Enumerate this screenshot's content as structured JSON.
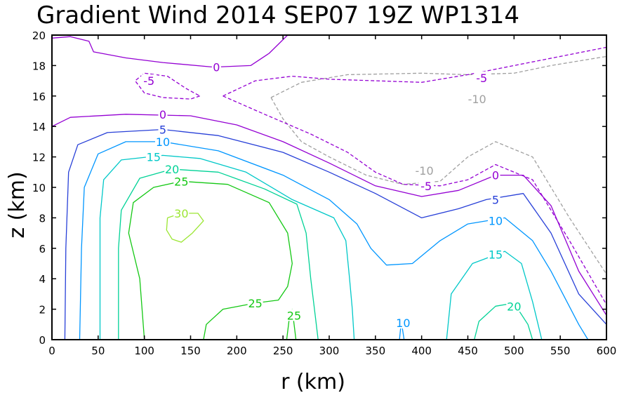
{
  "chart_data": {
    "type": "contour",
    "title": "Gradient Wind 2014 SEP07 19Z  WP1314",
    "xlabel": "r (km)",
    "ylabel": "z (km)",
    "xlim": [
      0,
      600
    ],
    "ylim": [
      0,
      20
    ],
    "xticks": [
      "0",
      "50",
      "100",
      "150",
      "200",
      "250",
      "300",
      "350",
      "400",
      "450",
      "500",
      "550",
      "600"
    ],
    "yticks": [
      "0",
      "2",
      "4",
      "6",
      "8",
      "10",
      "12",
      "14",
      "16",
      "18",
      "20"
    ],
    "levels": [
      {
        "value": -10,
        "label": "-10",
        "color": "#a0a0a0",
        "dashed": true,
        "lines": [
          [
            [
              237,
              15.9
            ],
            [
              270,
              16.9
            ],
            [
              320,
              17.4
            ],
            [
              400,
              17.5
            ],
            [
              450,
              17.4
            ],
            [
              500,
              17.5
            ],
            [
              540,
              18.0
            ],
            [
              600,
              18.6
            ]
          ],
          [
            [
              237,
              15.9
            ],
            [
              250,
              14.5
            ],
            [
              270,
              13.0
            ],
            [
              300,
              12.0
            ],
            [
              340,
              10.8
            ],
            [
              380,
              10.2
            ],
            [
              420,
              10.4
            ],
            [
              450,
              12.0
            ],
            [
              480,
              13.0
            ],
            [
              520,
              12.0
            ],
            [
              560,
              8.0
            ],
            [
              600,
              4.3
            ]
          ]
        ],
        "labels": [
          {
            "text": "-10",
            "x": 460,
            "y": 15.8
          },
          {
            "text": "-10",
            "x": 403,
            "y": 11.1
          }
        ]
      },
      {
        "value": -5,
        "label": "-5",
        "color": "#9400d3",
        "dashed": true,
        "lines": [
          [
            [
              160,
              16.0
            ],
            [
              150,
              15.8
            ],
            [
              120,
              15.9
            ],
            [
              100,
              16.2
            ],
            [
              90,
              17.0
            ],
            [
              100,
              17.5
            ],
            [
              125,
              17.3
            ],
            [
              145,
              16.5
            ],
            [
              160,
              16.0
            ]
          ],
          [
            [
              185,
              16.0
            ],
            [
              220,
              17.0
            ],
            [
              260,
              17.3
            ],
            [
              300,
              17.1
            ],
            [
              350,
              17.0
            ],
            [
              400,
              16.9
            ],
            [
              450,
              17.4
            ],
            [
              500,
              18.0
            ],
            [
              600,
              19.2
            ]
          ],
          [
            [
              185,
              16.0
            ],
            [
              230,
              14.8
            ],
            [
              280,
              13.5
            ],
            [
              320,
              12.3
            ],
            [
              350,
              11.0
            ],
            [
              380,
              10.2
            ],
            [
              420,
              10.1
            ],
            [
              450,
              10.5
            ],
            [
              480,
              11.5
            ],
            [
              520,
              10.5
            ],
            [
              560,
              6.5
            ],
            [
              600,
              2.3
            ]
          ]
        ],
        "labels": [
          {
            "text": "-5",
            "x": 105,
            "y": 17.0
          },
          {
            "text": "-5",
            "x": 465,
            "y": 17.2
          },
          {
            "text": "-5",
            "x": 405,
            "y": 10.1
          }
        ]
      },
      {
        "value": 0,
        "label": "0",
        "color": "#9400d3",
        "dashed": false,
        "lines": [
          [
            [
              0,
              19.8
            ],
            [
              20,
              19.9
            ],
            [
              40,
              19.6
            ],
            [
              45,
              18.9
            ],
            [
              80,
              18.5
            ],
            [
              120,
              18.2
            ],
            [
              175,
              17.9
            ],
            [
              215,
              18.0
            ],
            [
              235,
              18.8
            ],
            [
              255,
              20.0
            ]
          ],
          [
            [
              0,
              14.0
            ],
            [
              20,
              14.6
            ],
            [
              80,
              14.8
            ],
            [
              150,
              14.7
            ],
            [
              200,
              14.1
            ],
            [
              250,
              13.0
            ],
            [
              300,
              11.6
            ],
            [
              350,
              10.1
            ],
            [
              400,
              9.4
            ],
            [
              440,
              9.8
            ],
            [
              480,
              10.8
            ],
            [
              510,
              10.8
            ],
            [
              540,
              8.8
            ],
            [
              570,
              4.5
            ],
            [
              600,
              1.6
            ]
          ]
        ],
        "labels": [
          {
            "text": "0",
            "x": 178,
            "y": 17.9
          },
          {
            "text": "0",
            "x": 120,
            "y": 14.8
          },
          {
            "text": "0",
            "x": 480,
            "y": 10.8
          }
        ]
      },
      {
        "value": 5,
        "label": "5",
        "color": "#2840d8",
        "dashed": false,
        "lines": [
          [
            [
              14,
              0.0
            ],
            [
              15,
              6.0
            ],
            [
              18,
              11.0
            ],
            [
              28,
              12.8
            ],
            [
              60,
              13.6
            ],
            [
              120,
              13.8
            ],
            [
              180,
              13.4
            ],
            [
              250,
              12.3
            ],
            [
              300,
              11.0
            ],
            [
              350,
              9.6
            ],
            [
              400,
              8.0
            ],
            [
              440,
              8.6
            ],
            [
              470,
              9.2
            ],
            [
              510,
              9.6
            ],
            [
              540,
              7.0
            ],
            [
              570,
              3.0
            ],
            [
              600,
              1.0
            ]
          ]
        ],
        "labels": [
          {
            "text": "5",
            "x": 120,
            "y": 13.8
          },
          {
            "text": "5",
            "x": 480,
            "y": 9.2
          }
        ]
      },
      {
        "value": 10,
        "label": "10",
        "color": "#0096ff",
        "dashed": false,
        "lines": [
          [
            [
              30,
              0.0
            ],
            [
              32,
              6.0
            ],
            [
              35,
              10.0
            ],
            [
              50,
              12.2
            ],
            [
              80,
              13.0
            ],
            [
              120,
              13.0
            ],
            [
              180,
              12.4
            ],
            [
              250,
              10.8
            ],
            [
              300,
              9.2
            ],
            [
              330,
              7.6
            ],
            [
              345,
              6.0
            ],
            [
              362,
              4.9
            ],
            [
              390,
              5.0
            ],
            [
              420,
              6.5
            ],
            [
              450,
              7.6
            ],
            [
              490,
              8.0
            ],
            [
              520,
              6.5
            ],
            [
              540,
              4.5
            ],
            [
              570,
              1.0
            ],
            [
              580,
              0.0
            ]
          ],
          [
            [
              376,
              0.0
            ],
            [
              378,
              1.2
            ],
            [
              381,
              0.0
            ]
          ]
        ],
        "labels": [
          {
            "text": "10",
            "x": 120,
            "y": 13.0
          },
          {
            "text": "10",
            "x": 480,
            "y": 7.8
          },
          {
            "text": "10",
            "x": 380,
            "y": 1.1
          }
        ]
      },
      {
        "value": 15,
        "label": "15",
        "color": "#00c8c8",
        "dashed": false,
        "lines": [
          [
            [
              52,
              0.0
            ],
            [
              52,
              8.0
            ],
            [
              56,
              10.5
            ],
            [
              75,
              11.8
            ],
            [
              120,
              12.1
            ],
            [
              160,
              11.9
            ],
            [
              210,
              11.0
            ],
            [
              260,
              9.2
            ],
            [
              305,
              8.0
            ],
            [
              318,
              6.5
            ],
            [
              322,
              4.0
            ],
            [
              325,
              2.0
            ],
            [
              327,
              0.0
            ]
          ],
          [
            [
              427,
              0.0
            ],
            [
              432,
              3.0
            ],
            [
              455,
              5.0
            ],
            [
              490,
              5.8
            ],
            [
              508,
              5.0
            ],
            [
              520,
              2.5
            ],
            [
              530,
              0.0
            ]
          ]
        ],
        "labels": [
          {
            "text": "15",
            "x": 110,
            "y": 12.0
          },
          {
            "text": "15",
            "x": 480,
            "y": 5.6
          }
        ]
      },
      {
        "value": 20,
        "label": "20",
        "color": "#00d296",
        "dashed": false,
        "lines": [
          [
            [
              72,
              0.0
            ],
            [
              72,
              6.0
            ],
            [
              75,
              8.5
            ],
            [
              95,
              10.6
            ],
            [
              130,
              11.2
            ],
            [
              180,
              11.0
            ],
            [
              230,
              9.9
            ],
            [
              265,
              8.9
            ],
            [
              275,
              7.0
            ],
            [
              280,
              4.0
            ],
            [
              285,
              1.5
            ],
            [
              288,
              0.0
            ]
          ],
          [
            [
              457,
              0.0
            ],
            [
              462,
              1.2
            ],
            [
              480,
              2.2
            ],
            [
              500,
              2.4
            ],
            [
              515,
              1.0
            ],
            [
              520,
              0.0
            ]
          ]
        ],
        "labels": [
          {
            "text": "20",
            "x": 130,
            "y": 11.2
          },
          {
            "text": "20",
            "x": 500,
            "y": 2.2
          }
        ]
      },
      {
        "value": 25,
        "label": "25",
        "color": "#14c814",
        "dashed": false,
        "lines": [
          [
            [
              100,
              0.0
            ],
            [
              95,
              4.0
            ],
            [
              83,
              7.0
            ],
            [
              88,
              9.0
            ],
            [
              110,
              10.0
            ],
            [
              140,
              10.4
            ],
            [
              190,
              10.2
            ],
            [
              235,
              9.0
            ],
            [
              255,
              7.0
            ],
            [
              260,
              5.0
            ],
            [
              255,
              3.5
            ],
            [
              245,
              2.6
            ],
            [
              220,
              2.4
            ],
            [
              185,
              2.0
            ],
            [
              167,
              1.0
            ],
            [
              164,
              0.0
            ]
          ],
          [
            [
              254,
              0.0
            ],
            [
              257,
              1.5
            ],
            [
              260,
              2.0
            ],
            [
              263,
              0.5
            ],
            [
              264,
              0.0
            ]
          ]
        ],
        "labels": [
          {
            "text": "25",
            "x": 140,
            "y": 10.4
          },
          {
            "text": "25",
            "x": 220,
            "y": 2.4
          },
          {
            "text": "25",
            "x": 262,
            "y": 1.6
          }
        ]
      },
      {
        "value": 30,
        "label": "30",
        "color": "#9be632",
        "dashed": false,
        "lines": [
          [
            [
              125,
              8.0
            ],
            [
              124,
              7.2
            ],
            [
              130,
              6.6
            ],
            [
              140,
              6.4
            ],
            [
              152,
              7.0
            ],
            [
              164,
              7.8
            ],
            [
              158,
              8.3
            ],
            [
              140,
              8.3
            ],
            [
              125,
              8.0
            ]
          ]
        ],
        "labels": [
          {
            "text": "30",
            "x": 140,
            "y": 8.3
          }
        ]
      }
    ]
  }
}
